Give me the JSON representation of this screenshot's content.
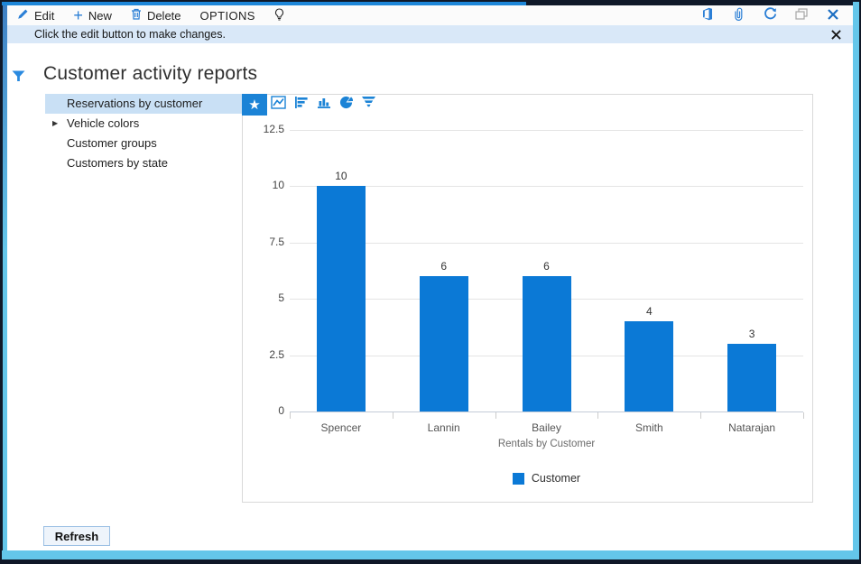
{
  "toolbar": {
    "edit_label": "Edit",
    "new_label": "New",
    "delete_label": "Delete",
    "options_label": "OPTIONS",
    "right_icons": [
      "open-in-office",
      "attachments",
      "refresh",
      "restore-window",
      "close-window"
    ]
  },
  "notification": {
    "text": "Click the edit button to make changes.",
    "close_icon": "close-x"
  },
  "page": {
    "title": "Customer activity reports",
    "filter_icon": "funnel-filter"
  },
  "sidebar": {
    "items": [
      {
        "label": "Reservations by customer",
        "selected": true
      },
      {
        "label": "Vehicle colors",
        "expandable": true
      },
      {
        "label": "Customer groups"
      },
      {
        "label": "Customers by state"
      }
    ]
  },
  "chart_toolbar": {
    "icons": [
      "favorite-star",
      "line-chart",
      "bar-chart-horizontal",
      "column-chart",
      "pie-chart",
      "funnel-chart"
    ],
    "selected": "favorite-star"
  },
  "chart_data": {
    "type": "bar",
    "categories": [
      "Spencer",
      "Lannin",
      "Bailey",
      "Smith",
      "Natarajan"
    ],
    "values": [
      10,
      6,
      6,
      4,
      3
    ],
    "title": "",
    "xlabel": "Rentals by Customer",
    "ylabel": "",
    "yticks": [
      0,
      2.5,
      5,
      7.5,
      10,
      12.5
    ],
    "ylim": [
      0,
      12.5
    ],
    "legend": [
      "Customer"
    ],
    "legend_position": "bottom",
    "grid": true,
    "bar_color": "#0b79d6"
  },
  "footer": {
    "refresh_label": "Refresh"
  },
  "colors": {
    "accent_blue": "#1b83d6",
    "bar_blue": "#0b79d6",
    "selected_item_bg": "#c9e0f5",
    "notification_bg": "#d9e8f8",
    "frame_navy": "#0f1828",
    "frame_cyan": "#64c6ea",
    "frame_top_blue": "#1d86d8"
  }
}
